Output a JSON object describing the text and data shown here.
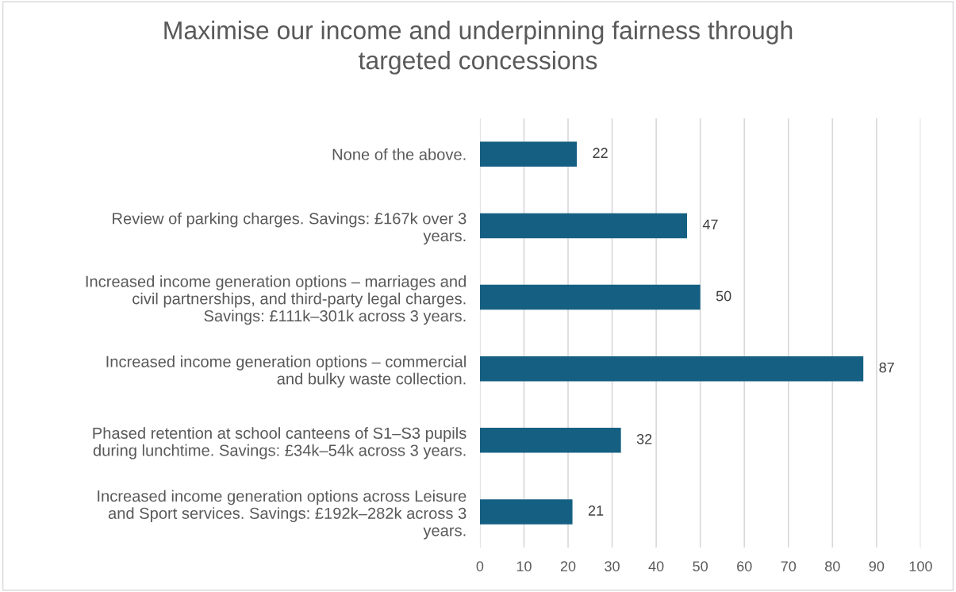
{
  "chart_data": {
    "type": "bar",
    "orientation": "horizontal",
    "title": "Maximise our income and underpinning fairness through\ntargeted concessions",
    "categories": [
      "None of the above.",
      "Review of parking charges. Savings: £167k over 3\nyears.",
      "Increased income generation options – marriages and\ncivil partnerships, and third-party legal charges.\nSavings: £111k–301k across 3 years.",
      "Increased income generation options – commercial\nand bulky waste collection.",
      "Phased retention at school canteens of S1–S3 pupils\nduring lunchtime. Savings: £34k–54k across 3 years.",
      "Increased income generation options across Leisure\nand Sport services. Savings: £192k–282k across 3\nyears."
    ],
    "values": [
      22,
      47,
      50,
      87,
      32,
      21
    ],
    "color": "#156082",
    "xlim": [
      0,
      100
    ],
    "xticks": [
      0,
      10,
      20,
      30,
      40,
      50,
      60,
      70,
      80,
      90,
      100
    ],
    "grid": "x",
    "data_labels": true
  }
}
